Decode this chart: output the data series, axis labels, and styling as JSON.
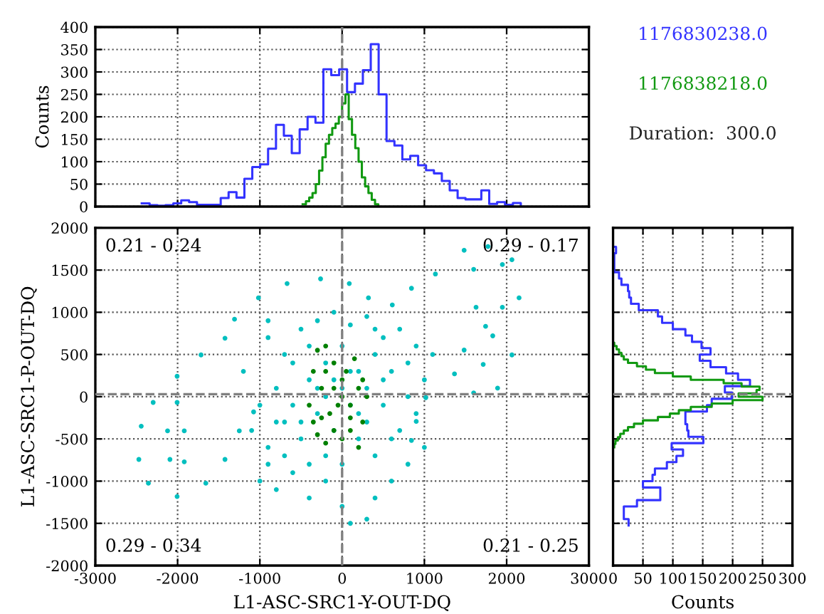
{
  "chart_data": [
    {
      "type": "step",
      "ylabel": "Counts",
      "xlim": [
        -3000,
        3000
      ],
      "xticks": [
        -3000,
        -2000,
        -1000,
        0,
        1000,
        2000,
        3000
      ],
      "ylim": [
        0,
        400
      ],
      "yticks": [
        0,
        50,
        100,
        150,
        200,
        250,
        300,
        350,
        400
      ],
      "tick_labels": "y",
      "grid": true,
      "ref_lines": [
        {
          "axis": "x",
          "value": 0,
          "color": "#808080",
          "line_style": "dashed"
        }
      ],
      "series": [
        {
          "color": "#3333ff",
          "x": [
            -2436,
            -2340,
            -2244,
            -2148,
            -2052,
            -1956,
            -1860,
            -1764,
            -1668,
            -1572,
            -1476,
            -1380,
            -1284,
            -1188,
            -1092,
            -996,
            -900,
            -804,
            -708,
            -612,
            -516,
            -420,
            -324,
            -228,
            -132,
            -36,
            60,
            156,
            252,
            348,
            444,
            540,
            636,
            732,
            828,
            924,
            1020,
            1116,
            1212,
            1308,
            1404,
            1500,
            1596,
            1692,
            1788,
            1884,
            1980,
            2076,
            2172
          ],
          "values": [
            7,
            3,
            2,
            3,
            7,
            14,
            10,
            4,
            4,
            4,
            19,
            32,
            20,
            62,
            88,
            94,
            129,
            182,
            158,
            119,
            172,
            200,
            187,
            306,
            293,
            306,
            255,
            274,
            304,
            362,
            250,
            146,
            136,
            105,
            113,
            92,
            81,
            74,
            57,
            36,
            19,
            16,
            16,
            36,
            6,
            10,
            4,
            8,
            0
          ]
        },
        {
          "color": "#119911",
          "x": [
            -480,
            -440,
            -400,
            -360,
            -320,
            -280,
            -240,
            -200,
            -160,
            -120,
            -80,
            -40,
            0,
            40,
            80,
            120,
            160,
            200,
            240,
            280,
            320,
            360,
            400,
            440
          ],
          "values": [
            5,
            12,
            20,
            30,
            50,
            80,
            110,
            140,
            160,
            175,
            185,
            200,
            230,
            250,
            195,
            160,
            130,
            100,
            65,
            45,
            30,
            15,
            5,
            0
          ]
        }
      ]
    },
    {
      "type": "scatter",
      "xlabel": "L1-ASC-SRC1-Y-OUT-DQ",
      "ylabel": "L1-ASC-SRC1-P-OUT-DQ",
      "xlim": [
        -3000,
        3000
      ],
      "xticks": [
        -3000,
        -2000,
        -1000,
        0,
        1000,
        2000,
        3000
      ],
      "ylim": [
        -2000,
        2000
      ],
      "yticks": [
        -2000,
        -1500,
        -1000,
        -500,
        0,
        500,
        1000,
        1500,
        2000
      ],
      "grid": true,
      "marker": "circle",
      "annotations": [
        "0.21 - 0.24",
        "0.29 - 0.17",
        "0.29 - 0.34",
        "0.21 - 0.25"
      ],
      "ref_lines": [
        {
          "axis": "x",
          "value": 0,
          "color": "#808080",
          "line_style": "dashed"
        },
        {
          "axis": "y",
          "value": 30,
          "color": "#808080",
          "line_style": "dashed"
        }
      ],
      "series": [
        {
          "color": "#00bfbf",
          "x": [
            -1424,
            -1715,
            -2006,
            -2297,
            -2442,
            -2471,
            -2355,
            -2006,
            -1657,
            -1424,
            -1250,
            -1076,
            -2006,
            -1919,
            -1919,
            -2093,
            -2122,
            -1308,
            -1017,
            -669,
            -262,
            87,
            320,
            610,
            843,
            1134,
            1483,
            1773,
            1948,
            1948,
            1831,
            1715,
            1599,
            1890,
            2064,
            2151,
            2064,
            1599,
            1628,
            1744,
            1483,
            1366,
            1017,
            901,
            843,
            -900,
            -700,
            -500,
            -300,
            -100,
            100,
            300,
            500,
            700,
            900,
            1100,
            1000,
            800,
            600,
            400,
            200,
            0,
            -200,
            -400,
            -600,
            -800,
            -1000,
            -1100,
            -900,
            -700,
            -500,
            -300,
            -100,
            100,
            300,
            500,
            700,
            900,
            1000,
            800,
            600,
            400,
            300,
            100,
            0,
            -200,
            -400,
            -600,
            -800,
            -1000,
            -900,
            -700,
            -500,
            -300,
            -100,
            100,
            300,
            500,
            200,
            -200,
            0,
            400,
            600,
            -400,
            -600,
            -200,
            0,
            200,
            -800,
            800,
            400,
            -400,
            -1200,
            -900
          ],
          "values": [
            693,
            495,
            242,
            -68,
            -349,
            -743,
            -1025,
            -1182,
            -1025,
            -743,
            -405,
            -180,
            -68,
            -405,
            -771,
            -743,
            -405,
            918,
            1171,
            1340,
            1396,
            1340,
            1171,
            1087,
            1284,
            1453,
            1734,
            1779,
            1565,
            1059,
            721,
            383,
            45,
            101,
            495,
            1171,
            1622,
            1509,
            1059,
            833,
            552,
            270,
            -11,
            -293,
            -518,
            700,
            500,
            800,
            900,
            1000,
            850,
            950,
            700,
            800,
            600,
            500,
            200,
            0,
            300,
            500,
            300,
            600,
            400,
            200,
            400,
            100,
            -100,
            -400,
            -600,
            -300,
            -500,
            -200,
            -400,
            -100,
            -300,
            -100,
            -400,
            -200,
            -600,
            -800,
            -1000,
            -1200,
            -1450,
            -1500,
            -1300,
            -1000,
            -1200,
            -900,
            -1100,
            -1000,
            -800,
            -700,
            -300,
            100,
            200,
            300,
            100,
            200,
            -500,
            -700,
            -800,
            -700,
            -500,
            -800,
            -100,
            0,
            100,
            -200,
            -300,
            400,
            800,
            600,
            300,
            900
          ]
        },
        {
          "color": "#008000",
          "x": [
            -300,
            -200,
            -100,
            -350,
            -250,
            -400,
            -350,
            -300,
            -200,
            -100,
            0,
            100,
            200,
            250,
            100,
            0,
            -100,
            50,
            150,
            250,
            300,
            -150,
            -50,
            -250,
            200,
            -200,
            100,
            0
          ],
          "values": [
            550,
            600,
            400,
            300,
            100,
            -100,
            -300,
            -450,
            -550,
            -400,
            -500,
            -400,
            -600,
            -300,
            -100,
            0,
            100,
            300,
            450,
            200,
            0,
            -200,
            -100,
            -250,
            100,
            300,
            -250,
            200
          ]
        }
      ]
    },
    {
      "type": "step",
      "orientation": "horizontal",
      "xlabel": "Counts",
      "xlim": [
        0,
        300
      ],
      "xticks": [
        0,
        50,
        100,
        150,
        200,
        250,
        300
      ],
      "ylim": [
        -2000,
        2000
      ],
      "yticks": [
        -2000,
        -1500,
        -1000,
        -500,
        0,
        500,
        1000,
        1500,
        2000
      ],
      "tick_labels": "x",
      "grid": true,
      "ref_lines": [
        {
          "axis": "y",
          "value": 30,
          "color": "#808080",
          "line_style": "dashed"
        }
      ],
      "series": [
        {
          "color": "#3333ff",
          "x": [
            -1525,
            -1450,
            -1375,
            -1300,
            -1225,
            -1150,
            -1075,
            -1000,
            -925,
            -850,
            -775,
            -700,
            -625,
            -550,
            -475,
            -400,
            -325,
            -250,
            -175,
            -100,
            -25,
            50,
            125,
            200,
            275,
            350,
            425,
            500,
            575,
            650,
            725,
            800,
            875,
            950,
            1025,
            1100,
            1175,
            1250,
            1325,
            1400,
            1475,
            1550,
            1625,
            1700,
            1775
          ],
          "values": [
            26,
            18,
            18,
            40,
            79,
            79,
            50,
            66,
            70,
            90,
            106,
            117,
            98,
            151,
            126,
            124,
            121,
            121,
            157,
            165,
            199,
            187,
            229,
            209,
            189,
            163,
            145,
            163,
            148,
            132,
            121,
            100,
            82,
            75,
            43,
            30,
            27,
            25,
            14,
            10,
            2,
            2,
            2,
            5,
            0
          ]
        },
        {
          "color": "#119911",
          "x": [
            -600,
            -560,
            -520,
            -480,
            -440,
            -400,
            -360,
            -320,
            -280,
            -240,
            -200,
            -160,
            -120,
            -80,
            -40,
            0,
            40,
            80,
            120,
            160,
            200,
            240,
            280,
            320,
            360,
            400,
            440,
            480,
            520,
            560,
            600,
            640
          ],
          "values": [
            2,
            4,
            8,
            12,
            18,
            25,
            35,
            50,
            75,
            95,
            110,
            130,
            165,
            200,
            250,
            210,
            240,
            245,
            215,
            185,
            130,
            100,
            70,
            55,
            40,
            25,
            18,
            14,
            10,
            6,
            2,
            0
          ]
        }
      ]
    },
    {
      "type": "other",
      "annotations": [
        "1176830238.0",
        "1176838218.0",
        "Duration:  300.0"
      ],
      "colors": [
        "#3333ff",
        "#119911",
        "#222222"
      ]
    }
  ]
}
